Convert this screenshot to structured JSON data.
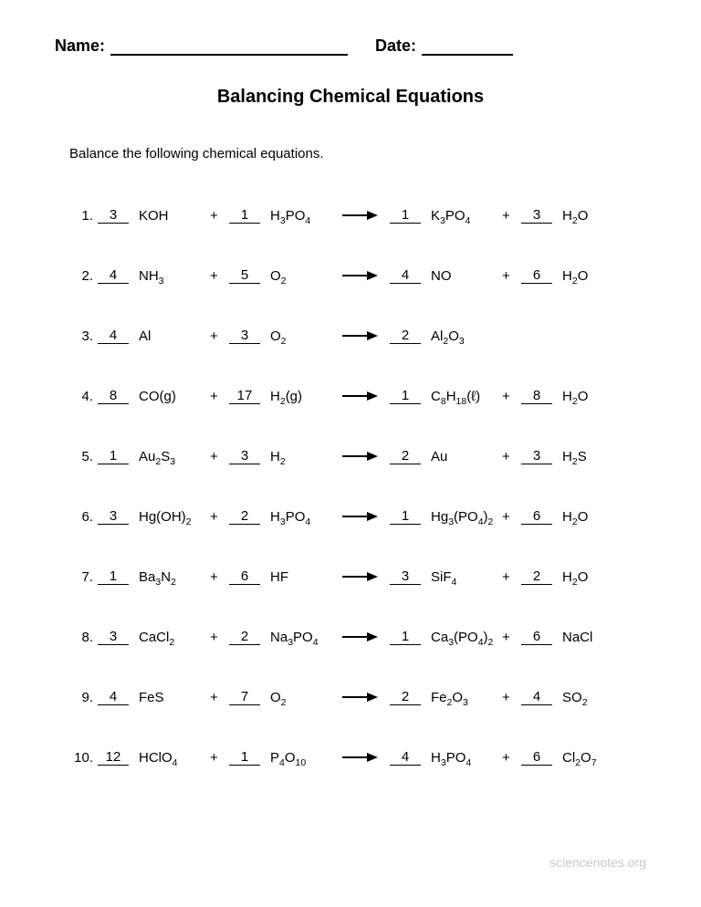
{
  "header": {
    "name_label": "Name:",
    "date_label": "Date:"
  },
  "title": "Balancing Chemical Equations",
  "instruction": "Balance the following chemical equations.",
  "equations": [
    {
      "n": "1.",
      "c1": "3",
      "r1": "KOH",
      "c2": "1",
      "r2": "H3PO4",
      "c3": "1",
      "p1": "K3PO4",
      "c4": "3",
      "p2": "H2O"
    },
    {
      "n": "2.",
      "c1": "4",
      "r1": "NH3",
      "c2": "5",
      "r2": "O2",
      "c3": "4",
      "p1": "NO",
      "c4": "6",
      "p2": "H2O"
    },
    {
      "n": "3.",
      "c1": "4",
      "r1": "Al",
      "c2": "3",
      "r2": "O2",
      "c3": "2",
      "p1": "Al2O3"
    },
    {
      "n": "4.",
      "c1": "8",
      "r1": "CO(g)",
      "c2": "17",
      "r2": "H2(g)",
      "c3": "1",
      "p1": "C8H18(ℓ)",
      "c4": "8",
      "p2": "H2O"
    },
    {
      "n": "5.",
      "c1": "1",
      "r1": "Au2S3",
      "c2": "3",
      "r2": "H2",
      "c3": "2",
      "p1": "Au",
      "c4": "3",
      "p2": "H2S"
    },
    {
      "n": "6.",
      "c1": "3",
      "r1": "Hg(OH)2",
      "c2": "2",
      "r2": "H3PO4",
      "c3": "1",
      "p1": "Hg3(PO4)2",
      "c4": "6",
      "p2": "H2O"
    },
    {
      "n": "7.",
      "c1": "1",
      "r1": "Ba3N2",
      "c2": "6",
      "r2": "HF",
      "c3": "3",
      "p1": "SiF4",
      "c4": "2",
      "p2": "H2O"
    },
    {
      "n": "8.",
      "c1": "3",
      "r1": "CaCl2",
      "c2": "2",
      "r2": "Na3PO4",
      "c3": "1",
      "p1": "Ca3(PO4)2",
      "c4": "6",
      "p2": "NaCl"
    },
    {
      "n": "9.",
      "c1": "4",
      "r1": "FeS",
      "c2": "7",
      "r2": "O2",
      "c3": "2",
      "p1": "Fe2O3",
      "c4": "4",
      "p2": "SO2"
    },
    {
      "n": "10.",
      "c1": "12",
      "r1": "HClO4",
      "c2": "1",
      "r2": "P4O10",
      "c3": "4",
      "p1": "H3PO4",
      "c4": "6",
      "p2": "Cl2O7"
    }
  ],
  "footer": "sciencenotes.org",
  "colors": {
    "text": "#000000",
    "background": "#ffffff",
    "footer": "#c8c8c8"
  }
}
